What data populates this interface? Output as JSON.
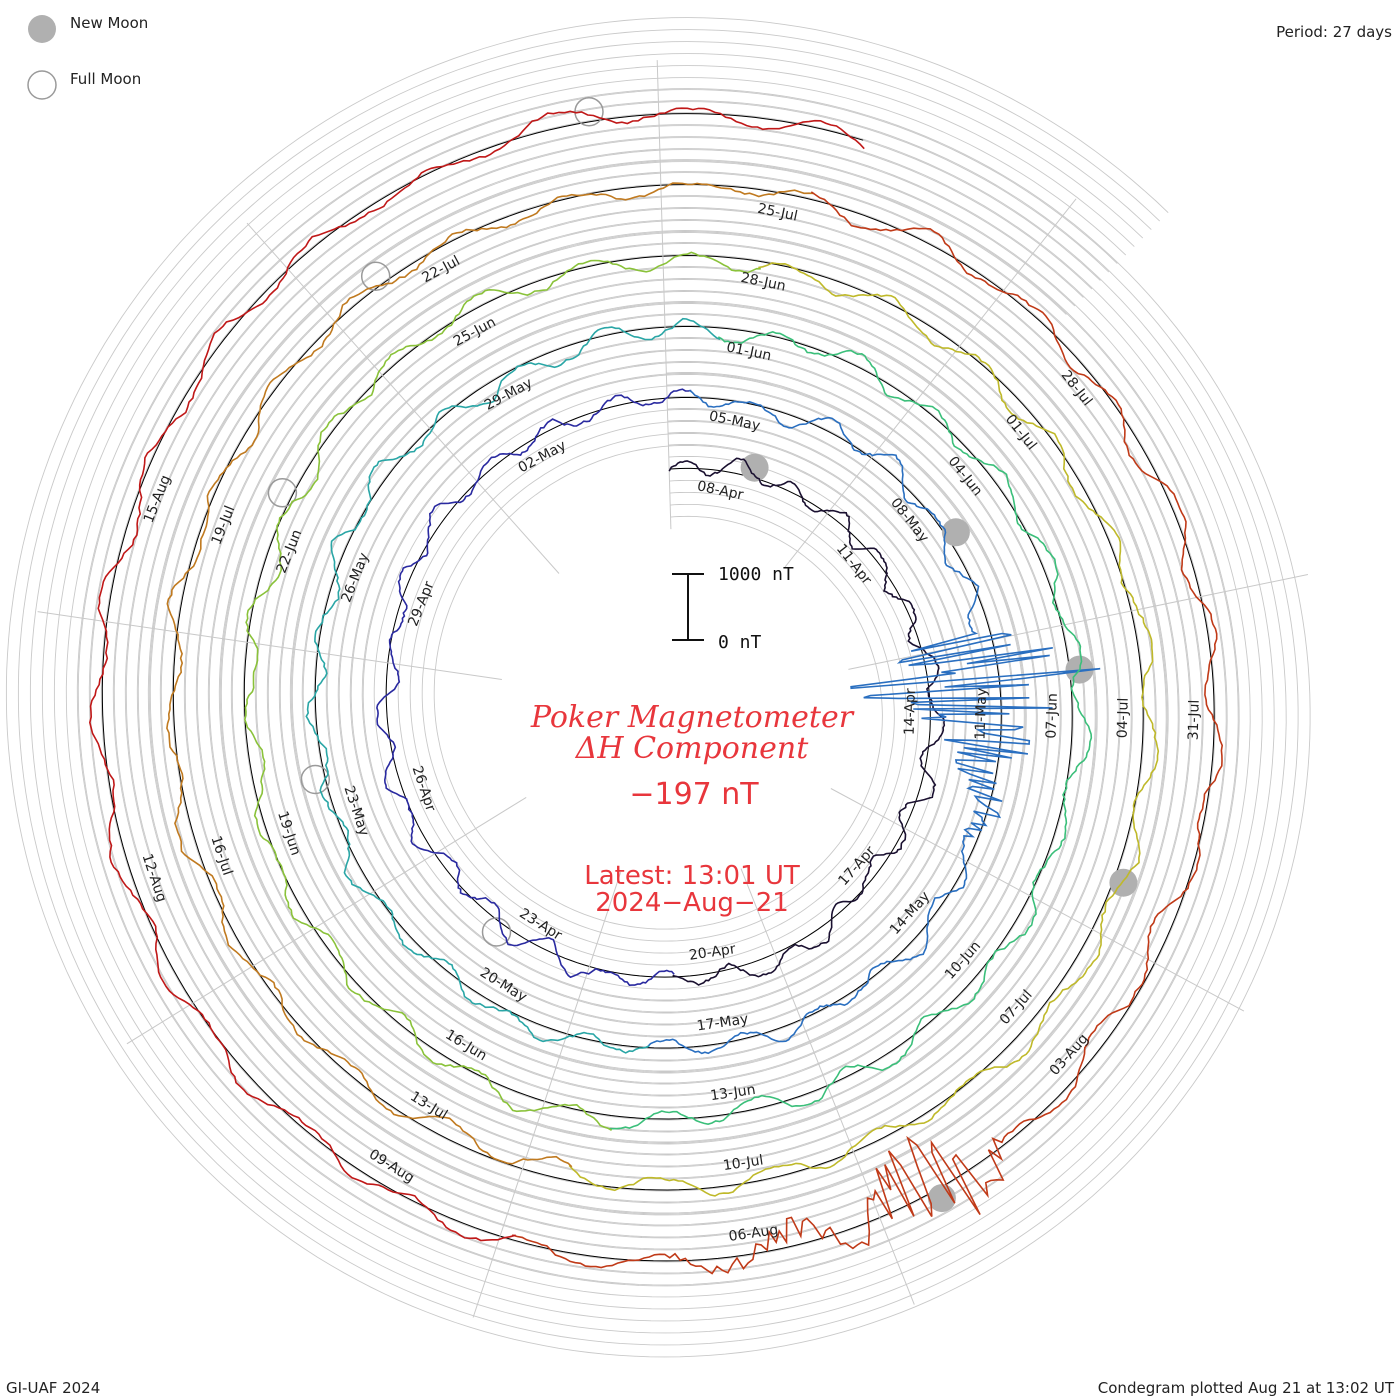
{
  "legend": {
    "new_moon_label": "New Moon",
    "full_moon_label": "Full Moon",
    "new_moon_color": "#b0b0b0",
    "full_moon_color": "#ffffff"
  },
  "header": {
    "period_label": "Period: 27 days"
  },
  "footer": {
    "credit": "GI-UAF 2024",
    "plotted": "Condegram plotted Aug 21 at 13:02 UT"
  },
  "center": {
    "title_line1": "Poker Magnetometer",
    "title_line2": "ΔH Component",
    "value": "−197 nT",
    "latest_line1": "Latest: 13:01 UT",
    "latest_line2": "2024−Aug−21"
  },
  "scale_bar": {
    "top_label": "1000 nT",
    "bottom_label": "0 nT"
  },
  "chart_data": {
    "type": "line",
    "subtype": "spiral condegram",
    "period_days": 27,
    "start_date": "2024-04-07",
    "end_date": "2024-08-21",
    "value_unit": "nT",
    "latest_value_nT": -197,
    "scale_bar_nT": [
      0,
      1000
    ],
    "date_tick_labels": [
      "08-Apr",
      "11-Apr",
      "14-Apr",
      "17-Apr",
      "20-Apr",
      "23-Apr",
      "26-Apr",
      "29-Apr",
      "02-May",
      "05-May",
      "08-May",
      "11-May",
      "14-May",
      "17-May",
      "20-May",
      "23-May",
      "26-May",
      "29-May",
      "01-Jun",
      "04-Jun",
      "07-Jun",
      "10-Jun",
      "13-Jun",
      "16-Jun",
      "19-Jun",
      "22-Jun",
      "25-Jun",
      "28-Jun",
      "01-Jul",
      "04-Jul",
      "07-Jul",
      "10-Jul",
      "13-Jul",
      "16-Jul",
      "19-Jul",
      "22-Jul",
      "25-Jul",
      "28-Jul",
      "31-Jul",
      "03-Aug",
      "06-Aug",
      "09-Aug",
      "12-Aug",
      "15-Aug"
    ],
    "ring_colors": [
      "#1a1030",
      "#2a2aa0",
      "#2a6fc0",
      "#2aa6a6",
      "#3bbf7a",
      "#8ac23a",
      "#bfb92a",
      "#c07a20",
      "#c03a18",
      "#c01818"
    ],
    "new_moon_dates": [
      "2024-04-08",
      "2024-05-08",
      "2024-06-06",
      "2024-07-05",
      "2024-08-04"
    ],
    "full_moon_dates": [
      "2024-04-23",
      "2024-05-23",
      "2024-06-22",
      "2024-07-21",
      "2024-08-19"
    ],
    "disturbed_periods": [
      {
        "date": "2024-05-10",
        "peak_nT": 1800
      },
      {
        "date": "2024-08-04",
        "peak_nT": 700
      }
    ],
    "grid": true
  }
}
